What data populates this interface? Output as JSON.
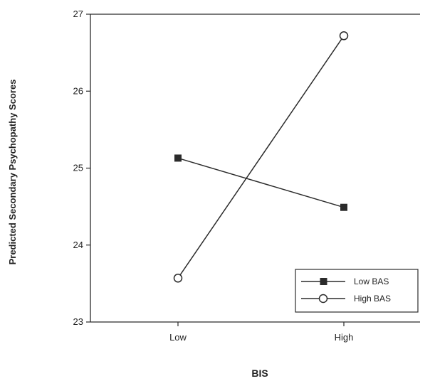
{
  "chart_data": {
    "type": "line",
    "xlabel": "BIS",
    "ylabel": "Predicted Secondary Psychopathy Scores",
    "categories": [
      "Low",
      "High"
    ],
    "ylim": [
      23,
      27
    ],
    "yticks": [
      "23",
      "24",
      "25",
      "26",
      "27"
    ],
    "grid": false,
    "legend_position": "bottom-right",
    "series": [
      {
        "name": "Low BAS",
        "marker": "filled-square",
        "values": [
          25.13,
          24.49
        ]
      },
      {
        "name": "High BAS",
        "marker": "open-circle",
        "values": [
          23.57,
          26.72
        ]
      }
    ]
  },
  "colors": {
    "line": "#2b2b2b",
    "background": "#ffffff",
    "axis": "#2b2b2b"
  }
}
